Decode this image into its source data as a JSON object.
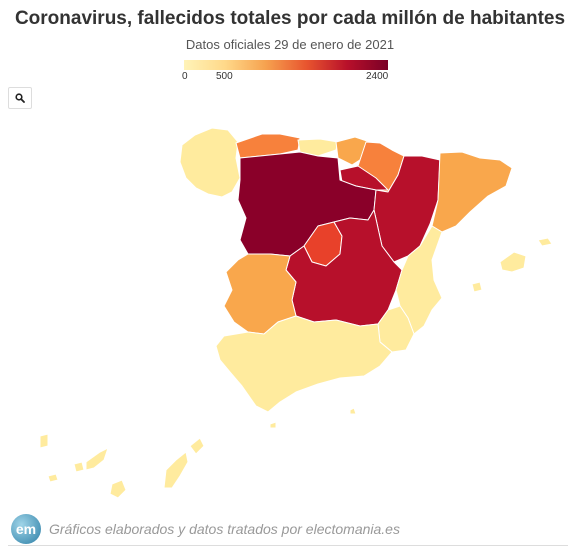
{
  "header": {
    "title": "Coronavirus, fallecidos totales por cada millón de habitantes",
    "subtitle": "Datos oficiales 29 de enero de 2021"
  },
  "legend": {
    "min_label": "0",
    "mid_label": "500",
    "max_label": "2400",
    "min": 0,
    "max": 2400,
    "colors": [
      "#fff3b8",
      "#ffd98a",
      "#f6a24f",
      "#e8552f",
      "#b8102a",
      "#7a0027"
    ]
  },
  "toolbar": {
    "zoom_icon": "search-icon"
  },
  "footer": {
    "logo_text": "em",
    "credit": "Gráficos elaborados y datos tratados por electomania.es"
  },
  "colors": {
    "lightest": "#ffeb9e",
    "light_orange": "#f9a74c",
    "orange": "#f7813c",
    "red_orange": "#e8412a",
    "red": "#b7102b",
    "dark_red": "#8a0029"
  }
}
